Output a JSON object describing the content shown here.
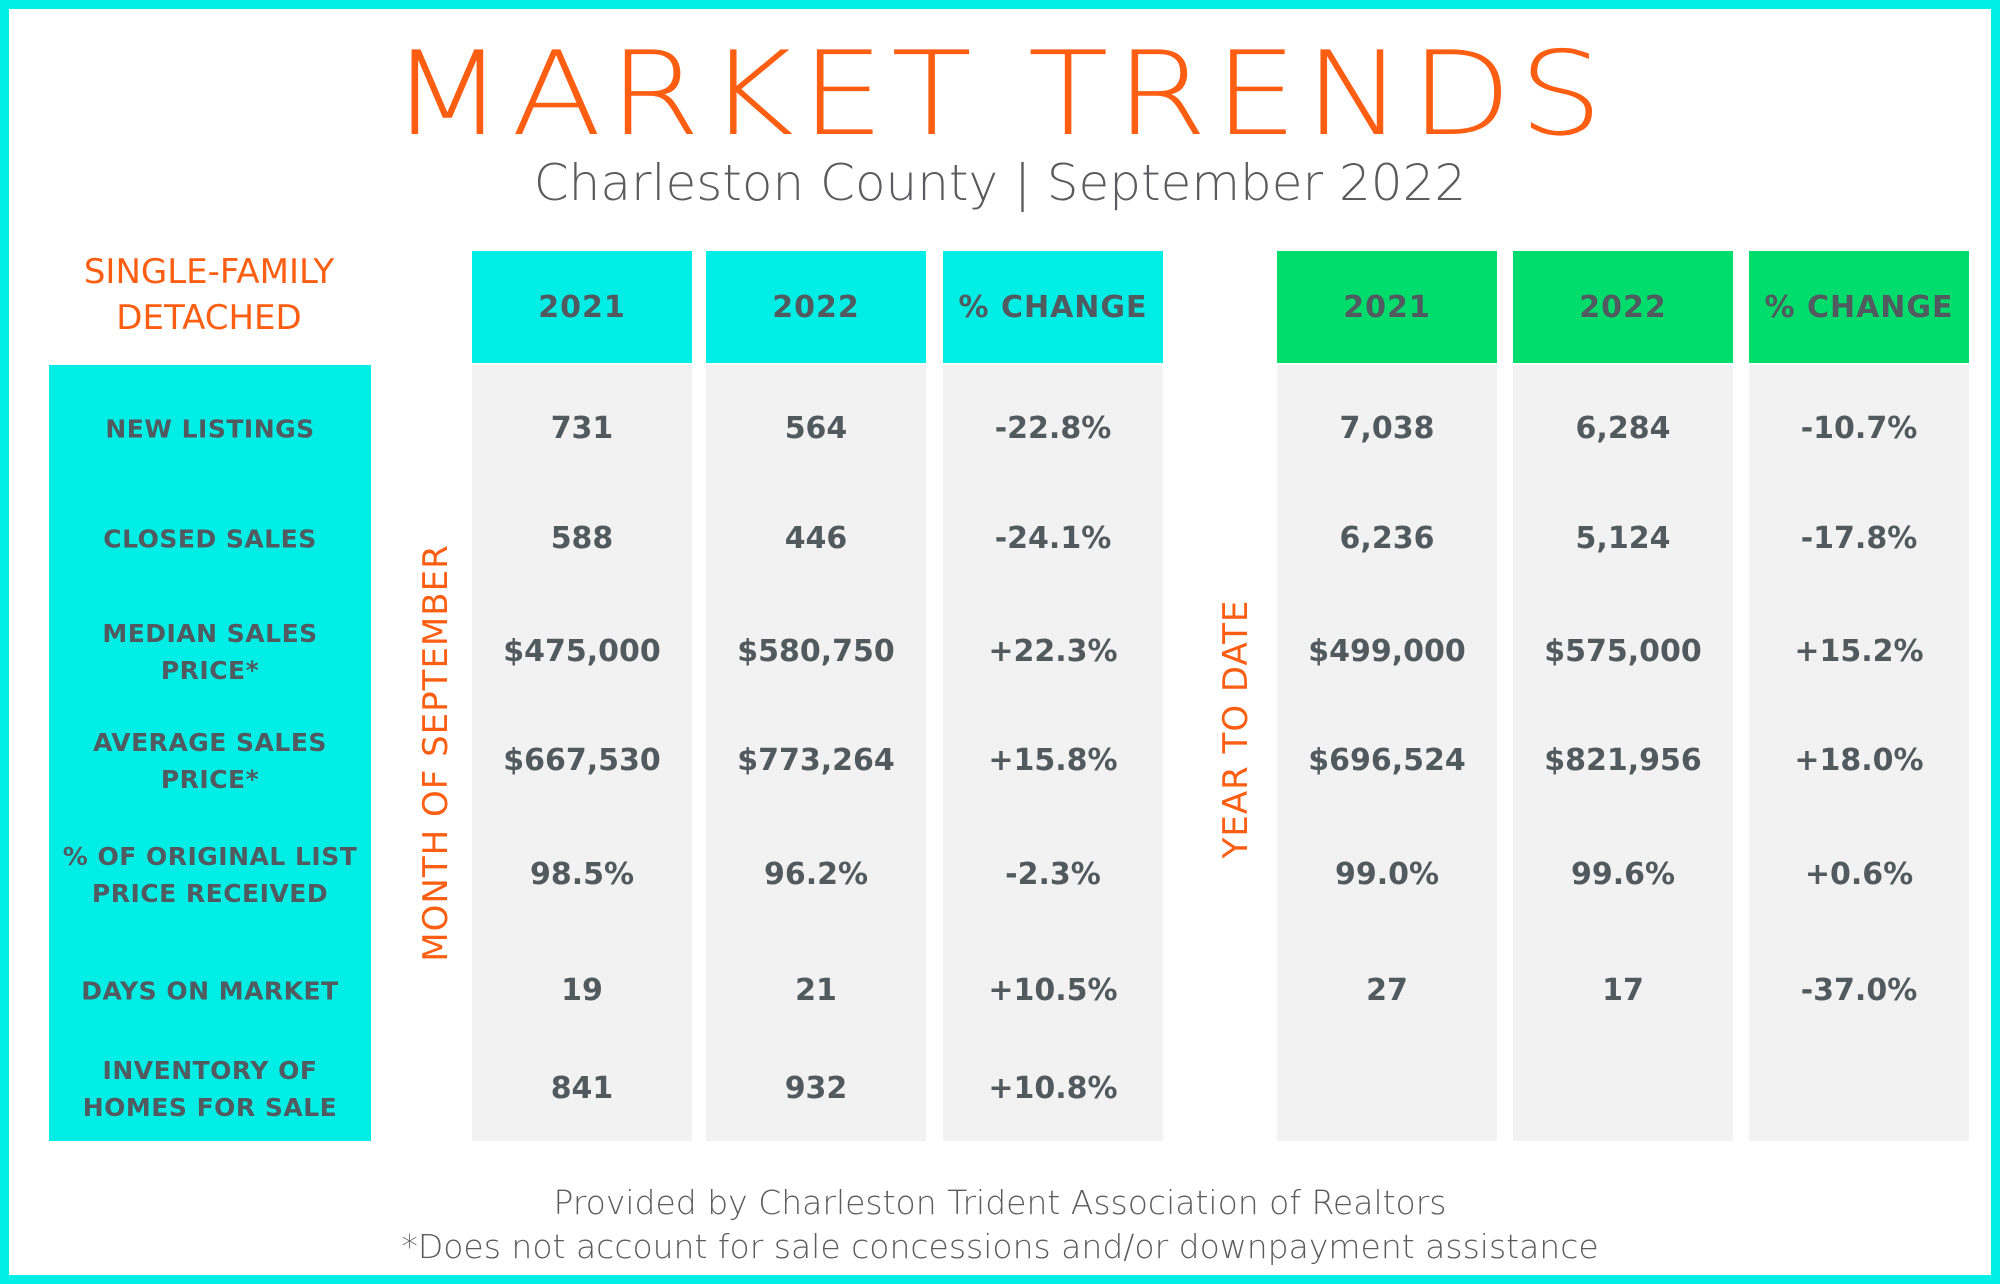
{
  "header": {
    "title": "MARKET TRENDS",
    "subtitle": "Charleston County | September 2022"
  },
  "category": {
    "line1": "SINGLE-FAMILY",
    "line2": "DETACHED"
  },
  "side_labels": {
    "month": "MONTH OF SEPTEMBER",
    "ytd": "YEAR TO DATE"
  },
  "footer": {
    "line1": "Provided by Charleston Trident Association of Realtors",
    "line2": "*Does not account for sale concessions and/or downpayment assistance"
  },
  "colors": {
    "accent_orange": "#fd5e12",
    "cyan": "#00eee6",
    "green": "#00dd6c",
    "text_gray": "#505a5f",
    "column_gray": "#f2f2f2"
  },
  "chart_data": {
    "type": "table",
    "title": "MARKET TRENDS",
    "subtitle": "Charleston County | September 2022",
    "groups": [
      {
        "name": "MONTH OF SEPTEMBER",
        "color": "#00eee6",
        "columns": [
          "2021",
          "2022",
          "% CHANGE"
        ],
        "rows": [
          [
            "731",
            "564",
            "-22.8%"
          ],
          [
            "588",
            "446",
            "-24.1%"
          ],
          [
            "$475,000",
            "$580,750",
            "+22.3%"
          ],
          [
            "$667,530",
            "$773,264",
            "+15.8%"
          ],
          [
            "98.5%",
            "96.2%",
            "-2.3%"
          ],
          [
            "19",
            "21",
            "+10.5%"
          ],
          [
            "841",
            "932",
            "+10.8%"
          ]
        ]
      },
      {
        "name": "YEAR TO DATE",
        "color": "#00dd6c",
        "columns": [
          "2021",
          "2022",
          "% CHANGE"
        ],
        "rows": [
          [
            "7,038",
            "6,284",
            "-10.7%"
          ],
          [
            "6,236",
            "5,124",
            "-17.8%"
          ],
          [
            "$499,000",
            "$575,000",
            "+15.2%"
          ],
          [
            "$696,524",
            "$821,956",
            "+18.0%"
          ],
          [
            "99.0%",
            "99.6%",
            "+0.6%"
          ],
          [
            "27",
            "17",
            "-37.0%"
          ],
          [
            "",
            "",
            ""
          ]
        ]
      }
    ],
    "row_labels": [
      [
        "NEW LISTINGS"
      ],
      [
        "CLOSED SALES"
      ],
      [
        "MEDIAN SALES",
        "PRICE*"
      ],
      [
        "AVERAGE SALES",
        "PRICE*"
      ],
      [
        "% OF ORIGINAL LIST",
        "PRICE RECEIVED"
      ],
      [
        "DAYS ON MARKET"
      ],
      [
        "INVENTORY OF",
        "HOMES FOR SALE"
      ]
    ]
  }
}
